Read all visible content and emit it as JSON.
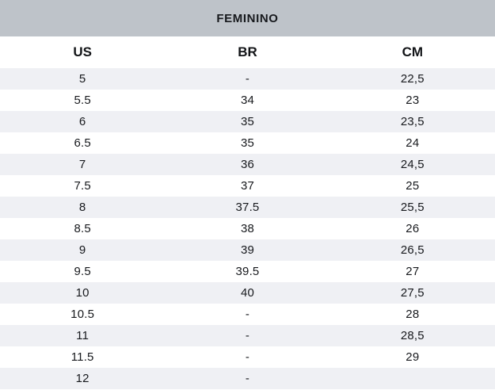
{
  "chart_data": {
    "type": "table",
    "title": "FEMININO",
    "columns": [
      "US",
      "BR",
      "CM"
    ],
    "rows": [
      [
        "5",
        "-",
        "22,5"
      ],
      [
        "5.5",
        "34",
        "23"
      ],
      [
        "6",
        "35",
        "23,5"
      ],
      [
        "6.5",
        "35",
        "24"
      ],
      [
        "7",
        "36",
        "24,5"
      ],
      [
        "7.5",
        "37",
        "25"
      ],
      [
        "8",
        "37.5",
        "25,5"
      ],
      [
        "8.5",
        "38",
        "26"
      ],
      [
        "9",
        "39",
        "26,5"
      ],
      [
        "9.5",
        "39.5",
        "27"
      ],
      [
        "10",
        "40",
        "27,5"
      ],
      [
        "10.5",
        "-",
        "28"
      ],
      [
        "11",
        "-",
        "28,5"
      ],
      [
        "11.5",
        "-",
        "29"
      ],
      [
        "12",
        "-",
        ""
      ]
    ],
    "layout": {
      "stripe_pattern": "odd-rows-shaded",
      "text_align": "center",
      "grid": false
    }
  },
  "colors": {
    "title_band_bg": "#bec3c9",
    "stripe_bg": "#eff0f4",
    "row_bg": "#ffffff",
    "text": "#17191d"
  }
}
